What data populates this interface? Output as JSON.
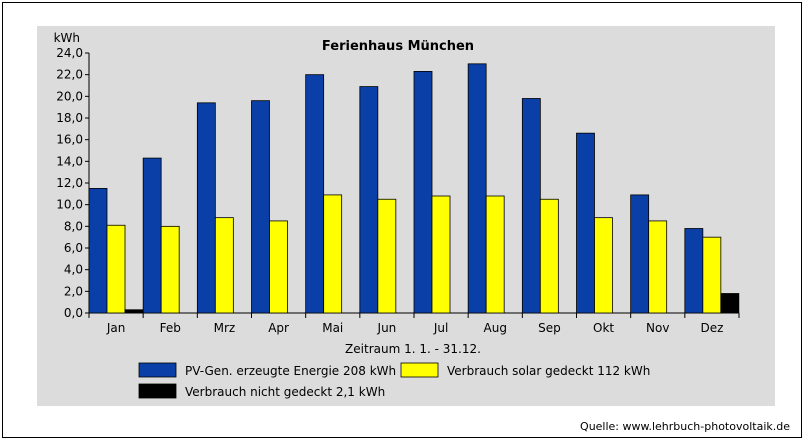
{
  "source_label": "Quelle: www.lehrbuch-photovoltaik.de",
  "chart_data": {
    "type": "bar",
    "title": "Ferienhaus München",
    "ylabel": "kWh",
    "xlabel": "Zeitraum 1. 1. - 31.12.",
    "ylim": [
      0,
      24
    ],
    "ytick_step": 2,
    "ytick_labels": [
      "0,0",
      "2,0",
      "4,0",
      "6,0",
      "8,0",
      "10,0",
      "12,0",
      "14,0",
      "16,0",
      "18,0",
      "20,0",
      "22,0",
      "24,0"
    ],
    "categories": [
      "Jan",
      "Feb",
      "Mrz",
      "Apr",
      "Mai",
      "Jun",
      "Jul",
      "Aug",
      "Sep",
      "Okt",
      "Nov",
      "Dez"
    ],
    "series": [
      {
        "name": "PV-Gen. erzeugte Energie  208  kWh",
        "color": "#0a3fa8",
        "values": [
          11.5,
          14.3,
          19.4,
          19.6,
          22.0,
          20.9,
          22.3,
          23.0,
          19.8,
          16.6,
          10.9,
          7.8
        ]
      },
      {
        "name": "Verbrauch solar gedeckt  112  kWh",
        "color": "#ffff00",
        "values": [
          8.1,
          8.0,
          8.8,
          8.5,
          10.9,
          10.5,
          10.8,
          10.8,
          10.5,
          8.8,
          8.5,
          7.0
        ]
      },
      {
        "name": "Verbrauch nicht gedeckt  2,1  kWh",
        "color": "#000000",
        "values": [
          0.3,
          0,
          0,
          0,
          0,
          0,
          0,
          0,
          0,
          0,
          0,
          1.8
        ]
      }
    ],
    "grid": false,
    "legend": "bottom"
  }
}
